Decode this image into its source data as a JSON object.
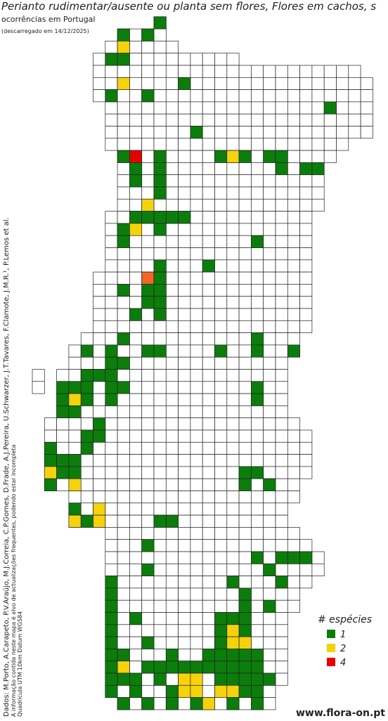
{
  "header": {
    "title": "Perianto rudimentar/ausente ou planta sem flores, Flores em cachos, s",
    "subtitle": "ocorrências em Portugal",
    "date": "(descarregado em 14/12/2025)"
  },
  "legend": {
    "title": "# espécies",
    "items": [
      {
        "label": "1",
        "count": 1,
        "color": "#0b7d0b"
      },
      {
        "label": "2",
        "count": 2,
        "color": "#f5d20c"
      },
      {
        "label": "4",
        "count": 4,
        "color": "#e60000"
      }
    ]
  },
  "count_colors": {
    "1": "#0b7d0b",
    "2": "#f5d20c",
    "3": "#f26522",
    "4": "#e60000"
  },
  "credits": [
    "Dados: M.Porto, A.Carapeto, P.V.Araújo, M.J.Correia, C.P.Gomes, D.Frade, A.J.Pereira, U.Schwarzer, J.T.Tavares, F.Clamote, J.M.R.¹, P.Lemos et al.",
    "A informação contida neste mapa é alvo de actualizações frequentes, podendo estar incompleta",
    "Quadrícula UTM 10km Datum WGS84"
  ],
  "footer": {
    "site": "www.flora-on.pt"
  },
  "cells": [
    [
      10,
      1,
      1
    ],
    [
      7,
      2,
      1
    ],
    [
      9,
      2,
      1
    ],
    [
      7,
      3,
      2
    ],
    [
      6,
      4,
      1
    ],
    [
      7,
      4,
      1
    ],
    [
      7,
      6,
      2
    ],
    [
      12,
      6,
      1
    ],
    [
      6,
      7,
      1
    ],
    [
      9,
      7,
      1
    ],
    [
      24,
      8,
      1
    ],
    [
      13,
      10,
      1
    ],
    [
      7,
      12,
      1
    ],
    [
      8,
      12,
      4
    ],
    [
      10,
      12,
      1
    ],
    [
      15,
      12,
      1
    ],
    [
      16,
      12,
      2
    ],
    [
      17,
      12,
      1
    ],
    [
      19,
      12,
      1
    ],
    [
      20,
      12,
      1
    ],
    [
      8,
      13,
      1
    ],
    [
      10,
      13,
      1
    ],
    [
      20,
      13,
      1
    ],
    [
      22,
      13,
      1
    ],
    [
      23,
      13,
      1
    ],
    [
      8,
      14,
      1
    ],
    [
      10,
      14,
      1
    ],
    [
      10,
      15,
      1
    ],
    [
      9,
      16,
      2
    ],
    [
      8,
      17,
      1
    ],
    [
      9,
      17,
      1
    ],
    [
      10,
      17,
      1
    ],
    [
      11,
      17,
      1
    ],
    [
      12,
      17,
      1
    ],
    [
      7,
      18,
      1
    ],
    [
      8,
      18,
      2
    ],
    [
      10,
      18,
      1
    ],
    [
      7,
      19,
      1
    ],
    [
      18,
      19,
      1
    ],
    [
      10,
      21,
      1
    ],
    [
      14,
      21,
      1
    ],
    [
      9,
      22,
      3
    ],
    [
      10,
      22,
      1
    ],
    [
      7,
      23,
      1
    ],
    [
      9,
      23,
      1
    ],
    [
      10,
      23,
      1
    ],
    [
      9,
      24,
      1
    ],
    [
      10,
      24,
      1
    ],
    [
      8,
      25,
      1
    ],
    [
      10,
      25,
      1
    ],
    [
      7,
      27,
      1
    ],
    [
      18,
      27,
      1
    ],
    [
      4,
      28,
      1
    ],
    [
      6,
      28,
      1
    ],
    [
      9,
      28,
      1
    ],
    [
      10,
      28,
      1
    ],
    [
      15,
      28,
      1
    ],
    [
      18,
      28,
      1
    ],
    [
      21,
      28,
      1
    ],
    [
      6,
      29,
      1
    ],
    [
      7,
      29,
      1
    ],
    [
      4,
      30,
      1
    ],
    [
      5,
      30,
      1
    ],
    [
      6,
      30,
      1
    ],
    [
      2,
      31,
      1
    ],
    [
      3,
      31,
      1
    ],
    [
      4,
      31,
      1
    ],
    [
      6,
      31,
      1
    ],
    [
      7,
      31,
      1
    ],
    [
      18,
      31,
      1
    ],
    [
      2,
      32,
      1
    ],
    [
      3,
      32,
      2
    ],
    [
      4,
      32,
      1
    ],
    [
      6,
      32,
      1
    ],
    [
      18,
      32,
      1
    ],
    [
      2,
      33,
      1
    ],
    [
      3,
      33,
      1
    ],
    [
      5,
      34,
      1
    ],
    [
      4,
      35,
      1
    ],
    [
      5,
      35,
      1
    ],
    [
      1,
      36,
      1
    ],
    [
      4,
      36,
      1
    ],
    [
      1,
      37,
      1
    ],
    [
      2,
      37,
      1
    ],
    [
      3,
      37,
      1
    ],
    [
      1,
      38,
      2
    ],
    [
      2,
      38,
      1
    ],
    [
      3,
      38,
      1
    ],
    [
      17,
      38,
      1
    ],
    [
      18,
      38,
      1
    ],
    [
      1,
      39,
      1
    ],
    [
      3,
      39,
      2
    ],
    [
      17,
      39,
      1
    ],
    [
      19,
      39,
      1
    ],
    [
      3,
      41,
      1
    ],
    [
      5,
      41,
      2
    ],
    [
      3,
      42,
      2
    ],
    [
      4,
      42,
      1
    ],
    [
      5,
      42,
      2
    ],
    [
      10,
      42,
      1
    ],
    [
      11,
      42,
      1
    ],
    [
      9,
      44,
      1
    ],
    [
      18,
      45,
      1
    ],
    [
      20,
      45,
      1
    ],
    [
      21,
      45,
      1
    ],
    [
      22,
      45,
      1
    ],
    [
      9,
      46,
      1
    ],
    [
      19,
      46,
      1
    ],
    [
      6,
      47,
      1
    ],
    [
      16,
      47,
      1
    ],
    [
      20,
      47,
      1
    ],
    [
      6,
      48,
      1
    ],
    [
      17,
      48,
      1
    ],
    [
      6,
      49,
      1
    ],
    [
      17,
      49,
      1
    ],
    [
      19,
      49,
      1
    ],
    [
      6,
      50,
      1
    ],
    [
      8,
      50,
      1
    ],
    [
      15,
      50,
      1
    ],
    [
      16,
      50,
      1
    ],
    [
      17,
      50,
      1
    ],
    [
      6,
      51,
      1
    ],
    [
      15,
      51,
      1
    ],
    [
      16,
      51,
      2
    ],
    [
      17,
      51,
      1
    ],
    [
      6,
      52,
      1
    ],
    [
      9,
      52,
      1
    ],
    [
      15,
      52,
      1
    ],
    [
      16,
      52,
      2
    ],
    [
      17,
      52,
      2
    ],
    [
      6,
      53,
      1
    ],
    [
      7,
      53,
      1
    ],
    [
      11,
      53,
      1
    ],
    [
      14,
      53,
      1
    ],
    [
      15,
      53,
      1
    ],
    [
      16,
      53,
      1
    ],
    [
      17,
      53,
      1
    ],
    [
      18,
      53,
      1
    ],
    [
      6,
      54,
      1
    ],
    [
      7,
      54,
      2
    ],
    [
      9,
      54,
      1
    ],
    [
      10,
      54,
      1
    ],
    [
      11,
      54,
      1
    ],
    [
      12,
      54,
      1
    ],
    [
      13,
      54,
      1
    ],
    [
      14,
      54,
      1
    ],
    [
      15,
      54,
      1
    ],
    [
      16,
      54,
      1
    ],
    [
      17,
      54,
      1
    ],
    [
      18,
      54,
      1
    ],
    [
      6,
      55,
      1
    ],
    [
      7,
      55,
      1
    ],
    [
      8,
      55,
      1
    ],
    [
      10,
      55,
      1
    ],
    [
      12,
      55,
      2
    ],
    [
      13,
      55,
      2
    ],
    [
      15,
      55,
      1
    ],
    [
      16,
      55,
      1
    ],
    [
      17,
      55,
      1
    ],
    [
      18,
      55,
      1
    ],
    [
      19,
      55,
      1
    ],
    [
      6,
      56,
      1
    ],
    [
      8,
      56,
      1
    ],
    [
      11,
      56,
      1
    ],
    [
      12,
      56,
      2
    ],
    [
      13,
      56,
      2
    ],
    [
      15,
      56,
      2
    ],
    [
      16,
      56,
      2
    ],
    [
      17,
      56,
      1
    ],
    [
      18,
      56,
      1
    ],
    [
      7,
      57,
      1
    ],
    [
      9,
      57,
      1
    ],
    [
      11,
      57,
      1
    ],
    [
      13,
      57,
      1
    ],
    [
      14,
      57,
      2
    ],
    [
      16,
      57,
      1
    ],
    [
      18,
      57,
      1
    ]
  ]
}
